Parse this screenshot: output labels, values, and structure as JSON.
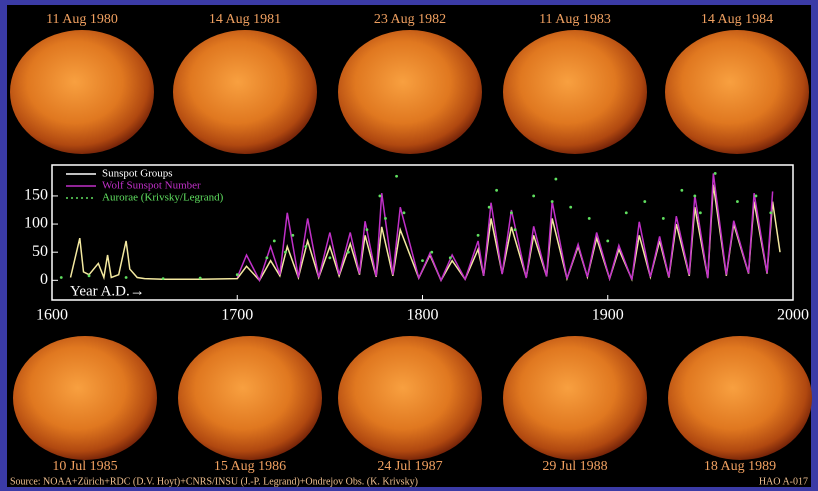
{
  "chart_data": {
    "type": "line",
    "annotation": "Year A.D.→",
    "xlim": [
      1600,
      2000
    ],
    "xticks": [
      1600,
      1700,
      1800,
      1900,
      2000
    ],
    "ylim": [
      -35,
      205
    ],
    "yticks": [
      0,
      50,
      100,
      150
    ],
    "legend": "upper left",
    "series": [
      {
        "name": "Sunspot Groups",
        "color": "#f4e9a0",
        "style": "line",
        "x": [
          1610,
          1615,
          1617,
          1620,
          1625,
          1628,
          1630,
          1632,
          1636,
          1640,
          1642,
          1646,
          1650,
          1660,
          1680,
          1700,
          1705,
          1712,
          1718,
          1723,
          1727,
          1733,
          1738,
          1744,
          1750,
          1755,
          1761,
          1766,
          1769,
          1775,
          1778,
          1784,
          1788,
          1798,
          1804,
          1810,
          1816,
          1823,
          1830,
          1833,
          1837,
          1843,
          1848,
          1856,
          1860,
          1867,
          1870,
          1878,
          1884,
          1889,
          1894,
          1901,
          1906,
          1913,
          1917,
          1923,
          1928,
          1933,
          1937,
          1944,
          1947,
          1954,
          1957,
          1964,
          1968,
          1976,
          1979,
          1986,
          1989,
          1993
        ],
        "values": [
          5,
          75,
          15,
          10,
          30,
          5,
          45,
          5,
          10,
          70,
          20,
          5,
          3,
          2,
          2,
          3,
          25,
          0,
          35,
          8,
          60,
          5,
          70,
          5,
          60,
          8,
          65,
          10,
          80,
          6,
          95,
          8,
          90,
          4,
          45,
          0,
          35,
          2,
          55,
          8,
          110,
          12,
          95,
          5,
          80,
          7,
          110,
          3,
          60,
          6,
          75,
          3,
          55,
          2,
          80,
          6,
          70,
          5,
          100,
          8,
          130,
          4,
          170,
          8,
          100,
          12,
          140,
          12,
          140,
          50
        ]
      },
      {
        "name": "Wolf Sunspot Number",
        "color": "#c030c8",
        "style": "line",
        "x": [
          1700,
          1705,
          1712,
          1718,
          1723,
          1727,
          1733,
          1738,
          1744,
          1750,
          1755,
          1761,
          1766,
          1769,
          1775,
          1778,
          1784,
          1788,
          1798,
          1804,
          1810,
          1816,
          1823,
          1830,
          1833,
          1837,
          1843,
          1848,
          1856,
          1860,
          1867,
          1870,
          1878,
          1884,
          1889,
          1894,
          1901,
          1906,
          1913,
          1917,
          1923,
          1928,
          1933,
          1937,
          1944,
          1947,
          1954,
          1957,
          1964,
          1968,
          1976,
          1979,
          1986,
          1989
        ],
        "values": [
          5,
          45,
          0,
          60,
          10,
          120,
          5,
          110,
          5,
          85,
          10,
          85,
          12,
          105,
          7,
          155,
          10,
          130,
          4,
          48,
          0,
          45,
          2,
          70,
          8,
          138,
          11,
          125,
          4,
          96,
          7,
          140,
          3,
          64,
          6,
          85,
          3,
          62,
          1,
          104,
          6,
          78,
          6,
          114,
          10,
          151,
          4,
          190,
          10,
          106,
          13,
          155,
          13,
          158
        ]
      },
      {
        "name": "Aurorae (Krivsky/Legrand)",
        "color": "#60e060",
        "style": "points",
        "x": [
          1605,
          1620,
          1640,
          1660,
          1680,
          1700,
          1716,
          1720,
          1726,
          1730,
          1737,
          1750,
          1760,
          1770,
          1777,
          1780,
          1786,
          1790,
          1800,
          1805,
          1815,
          1830,
          1836,
          1840,
          1848,
          1850,
          1860,
          1870,
          1872,
          1880,
          1890,
          1900,
          1910,
          1920,
          1930,
          1940,
          1947,
          1950,
          1958,
          1970,
          1980,
          1988
        ],
        "values": [
          5,
          8,
          5,
          3,
          4,
          10,
          40,
          70,
          50,
          80,
          60,
          40,
          50,
          90,
          150,
          110,
          185,
          120,
          35,
          50,
          40,
          80,
          130,
          160,
          120,
          90,
          150,
          140,
          180,
          130,
          110,
          70,
          120,
          140,
          110,
          160,
          150,
          120,
          190,
          140,
          150,
          120
        ]
      }
    ]
  },
  "images": {
    "top": [
      "11 Aug 1980",
      "14 Aug 1981",
      "23 Aug 1982",
      "11 Aug 1983",
      "14 Aug 1984"
    ],
    "bottom": [
      "10 Jul 1985",
      "15 Aug 1986",
      "24 Jul 1987",
      "29 Jul 1988",
      "18 Aug 1989"
    ]
  },
  "source": "Source: NOAA+Zürich+RDC (D.V. Hoyt)+CNRS/INSU (J.-P. Legrand)+Ondrejov Obs. (K. Krivsky)",
  "code": "HAO A-017"
}
